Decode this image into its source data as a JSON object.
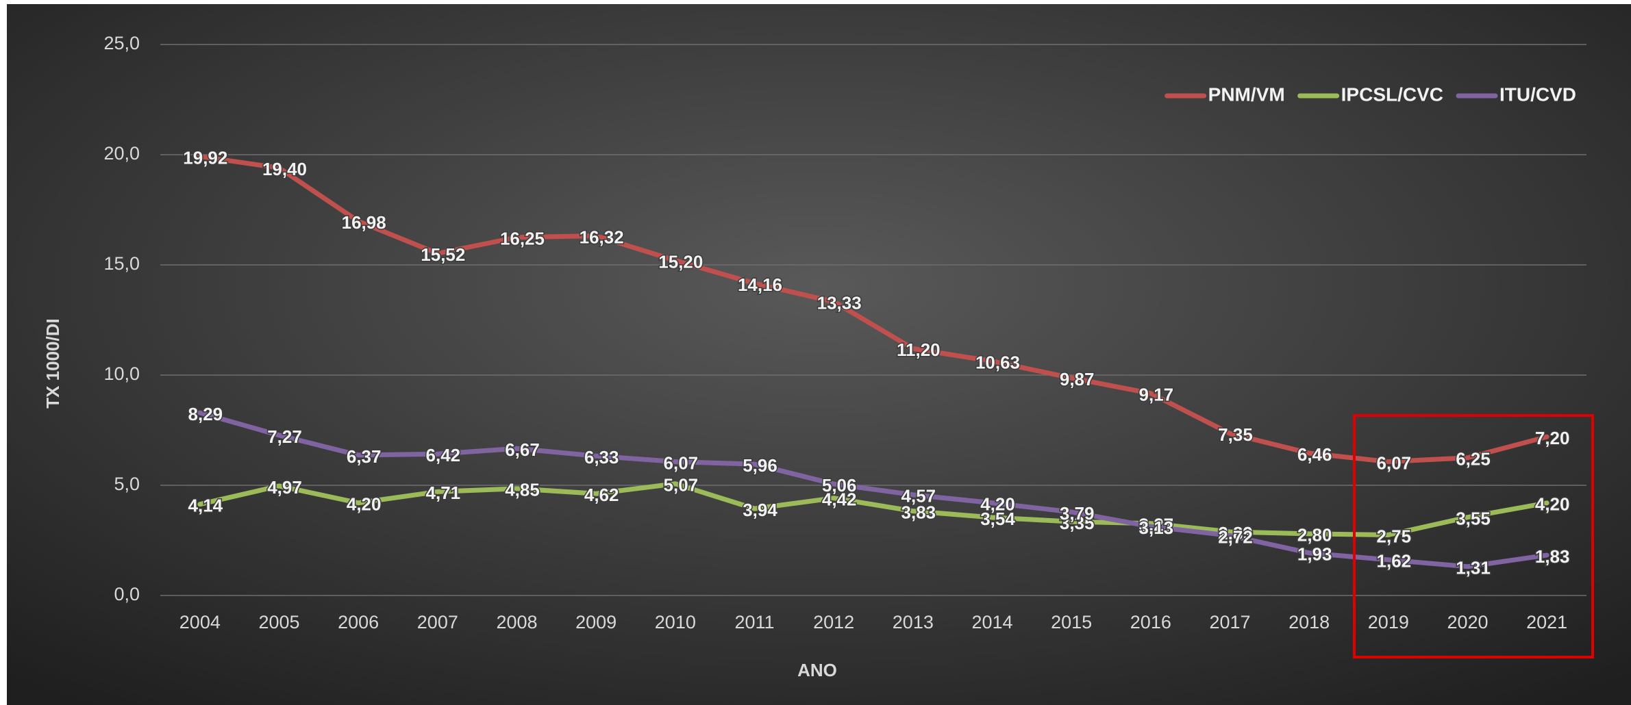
{
  "chart_data": {
    "type": "line",
    "x_label": "ANO",
    "y_label": "TX 1000/DI",
    "categories": [
      "2004",
      "2005",
      "2006",
      "2007",
      "2008",
      "2009",
      "2010",
      "2011",
      "2012",
      "2013",
      "2014",
      "2015",
      "2016",
      "2017",
      "2018",
      "2019",
      "2020",
      "2021"
    ],
    "series": [
      {
        "name": "PNM/VM",
        "color": "#c0504d",
        "values": [
          19.92,
          19.4,
          16.98,
          15.52,
          16.25,
          16.32,
          15.2,
          14.16,
          13.33,
          11.2,
          10.63,
          9.87,
          9.17,
          7.35,
          6.46,
          6.07,
          6.25,
          7.2
        ],
        "value_labels": [
          "19,92",
          "19,40",
          "16,98",
          "15,52",
          "16,25",
          "16,32",
          "15,20",
          "14,16",
          "13,33",
          "11,20",
          "10,63",
          "9,87",
          "9,17",
          "7,35",
          "6,46",
          "6,07",
          "6,25",
          "7,20"
        ]
      },
      {
        "name": "IPCSL/CVC",
        "color": "#9bbb59",
        "values": [
          4.14,
          4.97,
          4.2,
          4.71,
          4.85,
          4.62,
          5.07,
          3.94,
          4.42,
          3.83,
          3.54,
          3.35,
          3.27,
          2.89,
          2.8,
          2.75,
          3.55,
          4.2
        ],
        "value_labels": [
          "4,14",
          "4,97",
          "4,20",
          "4,71",
          "4,85",
          "4,62",
          "5,07",
          "3,94",
          "4,42",
          "3,83",
          "3,54",
          "3,35",
          "3,27",
          "2,89",
          "2,80",
          "2,75",
          "3,55",
          "4,20"
        ]
      },
      {
        "name": "ITU/CVD",
        "color": "#8064a2",
        "values": [
          8.29,
          7.27,
          6.37,
          6.42,
          6.67,
          6.33,
          6.07,
          5.96,
          5.06,
          4.57,
          4.2,
          3.79,
          3.13,
          2.72,
          1.93,
          1.62,
          1.31,
          1.83
        ],
        "value_labels": [
          "8,29",
          "7,27",
          "6,37",
          "6,42",
          "6,67",
          "6,33",
          "6,07",
          "5,96",
          "5,06",
          "4,57",
          "4,20",
          "3,79",
          "3,13",
          "2,72",
          "1,93",
          "1,62",
          "1,31",
          "1,83"
        ]
      }
    ],
    "ylim": [
      0,
      25
    ],
    "yticks": [
      {
        "value": 0,
        "label": "0,0"
      },
      {
        "value": 5,
        "label": "5,0"
      },
      {
        "value": 10,
        "label": "10,0"
      },
      {
        "value": 15,
        "label": "15,0"
      },
      {
        "value": 20,
        "label": "20,0"
      },
      {
        "value": 25,
        "label": "25,0"
      }
    ],
    "grid": true,
    "legend": "upper right"
  }
}
